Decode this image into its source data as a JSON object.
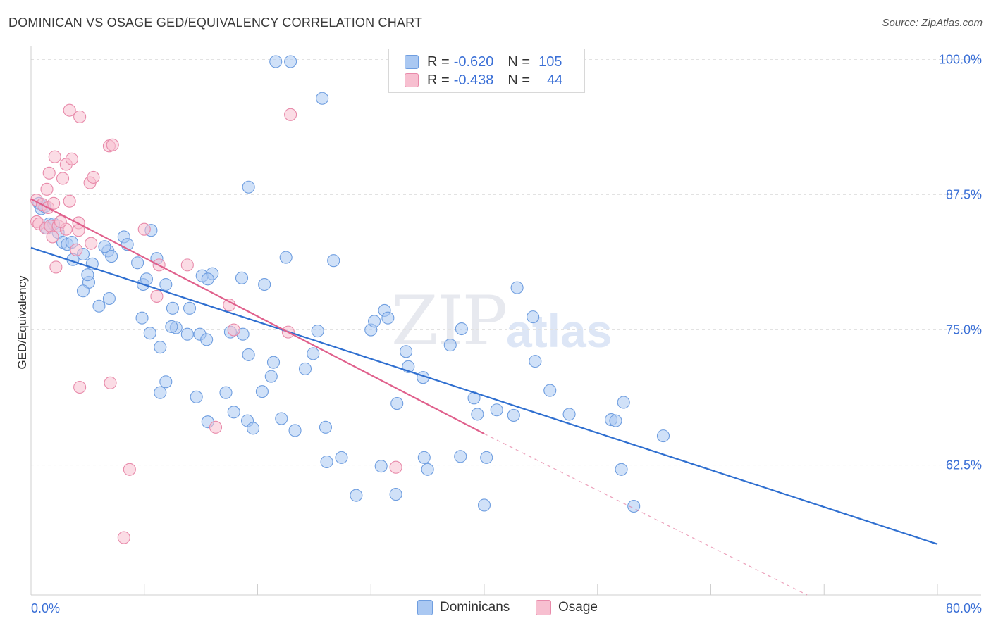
{
  "title": "DOMINICAN VS OSAGE GED/EQUIVALENCY CORRELATION CHART",
  "source": "Source: ZipAtlas.com",
  "watermark": {
    "zip": "ZIP",
    "atlas": "atlas"
  },
  "legend": {
    "rows": [
      {
        "r_label": "R =",
        "r_value": "-0.620",
        "n_label": "N =",
        "n_value": "105",
        "color": "#aac8f2",
        "border": "#6f9ee0"
      },
      {
        "r_label": "R =",
        "r_value": "-0.438",
        "n_label": "N =",
        "n_value": "44",
        "color": "#f7bfd0",
        "border": "#e88aaa"
      }
    ]
  },
  "bottom_legend": [
    {
      "label": "Dominicans",
      "color": "#aac8f2",
      "border": "#6f9ee0"
    },
    {
      "label": "Osage",
      "color": "#f7bfd0",
      "border": "#e88aaa"
    }
  ],
  "chart_data": {
    "type": "scatter",
    "title": "DOMINICAN VS OSAGE GED/EQUIVALENCY CORRELATION CHART",
    "xlabel": "",
    "ylabel": "GED/Equivalency",
    "xlim": [
      0,
      80
    ],
    "ylim": [
      50.5,
      101.2
    ],
    "x_tick_labels": [
      {
        "value": 0,
        "label": "0.0%"
      },
      {
        "value": 80,
        "label": "80.0%"
      }
    ],
    "y_tick_labels": [
      {
        "value": 100,
        "label": "100.0%"
      },
      {
        "value": 87.5,
        "label": "87.5%"
      },
      {
        "value": 75,
        "label": "75.0%"
      },
      {
        "value": 62.5,
        "label": "62.5%"
      }
    ],
    "grid": true,
    "legend_position": "top-center",
    "series": [
      {
        "name": "Dominicans",
        "color": "#6f9ee0",
        "fill": "#aac8f2",
        "trend": {
          "x": [
            0,
            80
          ],
          "y": [
            82.6,
            55.2
          ],
          "color": "#2f6fd0"
        },
        "points": [
          [
            0.7,
            86.7
          ],
          [
            0.9,
            86.2
          ],
          [
            1.2,
            86.4
          ],
          [
            1.6,
            84.8
          ],
          [
            1.4,
            84.4
          ],
          [
            2.0,
            84.8
          ],
          [
            2.4,
            84.0
          ],
          [
            2.8,
            83.1
          ],
          [
            3.2,
            82.9
          ],
          [
            3.6,
            83.1
          ],
          [
            3.7,
            81.5
          ],
          [
            4.6,
            82.0
          ],
          [
            5.4,
            81.1
          ],
          [
            6.8,
            82.3
          ],
          [
            7.1,
            81.8
          ],
          [
            6.5,
            82.7
          ],
          [
            5.1,
            79.4
          ],
          [
            5.0,
            80.1
          ],
          [
            4.6,
            78.6
          ],
          [
            8.2,
            83.6
          ],
          [
            8.5,
            82.9
          ],
          [
            10.6,
            84.2
          ],
          [
            11.1,
            81.6
          ],
          [
            9.4,
            81.2
          ],
          [
            11.9,
            79.2
          ],
          [
            9.9,
            79.2
          ],
          [
            10.2,
            79.7
          ],
          [
            6.0,
            77.2
          ],
          [
            6.9,
            77.9
          ],
          [
            9.8,
            76.1
          ],
          [
            10.5,
            74.7
          ],
          [
            12.5,
            77.0
          ],
          [
            12.8,
            75.2
          ],
          [
            12.4,
            75.3
          ],
          [
            14.0,
            77.0
          ],
          [
            13.8,
            74.6
          ],
          [
            11.4,
            73.4
          ],
          [
            14.9,
            74.6
          ],
          [
            15.5,
            74.1
          ],
          [
            15.1,
            80.0
          ],
          [
            16.0,
            80.2
          ],
          [
            18.6,
            79.8
          ],
          [
            20.6,
            79.2
          ],
          [
            22.5,
            81.7
          ],
          [
            17.6,
            74.8
          ],
          [
            18.7,
            74.6
          ],
          [
            19.2,
            72.7
          ],
          [
            21.4,
            72.0
          ],
          [
            21.2,
            70.7
          ],
          [
            24.2,
            71.4
          ],
          [
            11.9,
            70.2
          ],
          [
            11.4,
            69.2
          ],
          [
            14.6,
            68.8
          ],
          [
            17.2,
            69.2
          ],
          [
            17.9,
            67.4
          ],
          [
            19.1,
            66.6
          ],
          [
            19.6,
            65.9
          ],
          [
            20.4,
            69.3
          ],
          [
            22.1,
            66.8
          ],
          [
            23.3,
            65.7
          ],
          [
            15.6,
            66.5
          ],
          [
            26.0,
            66.0
          ],
          [
            26.1,
            62.8
          ],
          [
            27.4,
            63.2
          ],
          [
            24.9,
            72.8
          ],
          [
            25.3,
            74.9
          ],
          [
            26.7,
            81.4
          ],
          [
            21.6,
            99.8
          ],
          [
            22.9,
            99.8
          ],
          [
            25.7,
            96.4
          ],
          [
            19.2,
            88.2
          ],
          [
            30.0,
            75.0
          ],
          [
            30.3,
            75.8
          ],
          [
            31.2,
            76.8
          ],
          [
            31.5,
            76.1
          ],
          [
            33.1,
            73.0
          ],
          [
            33.3,
            71.6
          ],
          [
            34.6,
            70.6
          ],
          [
            32.3,
            68.2
          ],
          [
            28.7,
            59.7
          ],
          [
            32.2,
            59.8
          ],
          [
            30.9,
            62.4
          ],
          [
            34.7,
            63.2
          ],
          [
            35.0,
            62.1
          ],
          [
            38.0,
            75.1
          ],
          [
            42.9,
            78.9
          ],
          [
            39.1,
            68.7
          ],
          [
            39.4,
            67.2
          ],
          [
            41.1,
            67.6
          ],
          [
            44.3,
            76.2
          ],
          [
            44.5,
            72.1
          ],
          [
            42.6,
            67.1
          ],
          [
            45.8,
            69.4
          ],
          [
            47.5,
            67.2
          ],
          [
            51.2,
            66.7
          ],
          [
            51.6,
            66.6
          ],
          [
            52.3,
            68.3
          ],
          [
            52.1,
            62.1
          ],
          [
            55.8,
            65.2
          ],
          [
            53.2,
            58.7
          ],
          [
            40.2,
            63.2
          ],
          [
            37.9,
            63.3
          ],
          [
            37.0,
            73.6
          ],
          [
            15.6,
            79.7
          ],
          [
            40.0,
            58.8
          ]
        ]
      },
      {
        "name": "Osage",
        "color": "#e88aaa",
        "fill": "#f7bfd0",
        "trend": {
          "x": [
            0,
            40
          ],
          "y": [
            87.1,
            65.4
          ],
          "color": "#e0608c",
          "dashed_extension_to": [
            68.5,
            50.5
          ]
        },
        "points": [
          [
            0.5,
            87.0
          ],
          [
            1.0,
            86.6
          ],
          [
            1.5,
            86.3
          ],
          [
            2.0,
            86.7
          ],
          [
            0.5,
            85.0
          ],
          [
            0.7,
            84.8
          ],
          [
            1.3,
            84.4
          ],
          [
            1.7,
            84.6
          ],
          [
            2.4,
            84.6
          ],
          [
            3.1,
            84.3
          ],
          [
            2.6,
            85.0
          ],
          [
            3.4,
            86.9
          ],
          [
            1.9,
            83.6
          ],
          [
            4.2,
            84.9
          ],
          [
            4.2,
            84.2
          ],
          [
            2.2,
            80.8
          ],
          [
            4.0,
            82.4
          ],
          [
            1.4,
            88.0
          ],
          [
            1.6,
            89.5
          ],
          [
            2.1,
            91.0
          ],
          [
            2.8,
            89.0
          ],
          [
            3.1,
            90.3
          ],
          [
            3.6,
            90.8
          ],
          [
            5.2,
            88.6
          ],
          [
            5.5,
            89.1
          ],
          [
            3.4,
            95.3
          ],
          [
            4.3,
            94.7
          ],
          [
            6.9,
            92.0
          ],
          [
            7.2,
            92.1
          ],
          [
            10.0,
            84.3
          ],
          [
            11.1,
            78.1
          ],
          [
            11.3,
            81.0
          ],
          [
            13.8,
            81.0
          ],
          [
            17.5,
            77.3
          ],
          [
            17.9,
            75.0
          ],
          [
            22.7,
            74.8
          ],
          [
            22.9,
            94.9
          ],
          [
            4.3,
            69.7
          ],
          [
            7.0,
            70.1
          ],
          [
            8.7,
            62.1
          ],
          [
            8.2,
            55.8
          ],
          [
            32.2,
            62.3
          ],
          [
            16.3,
            66.0
          ],
          [
            5.3,
            83.0
          ]
        ]
      }
    ]
  }
}
